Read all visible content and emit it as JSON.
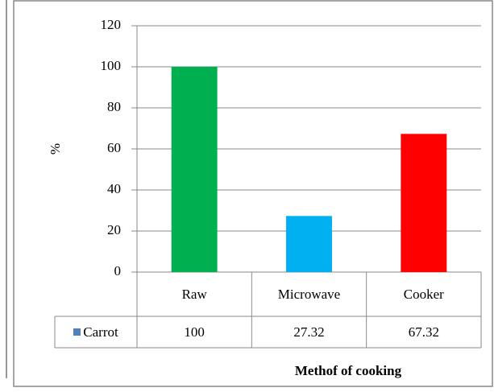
{
  "chart_data": {
    "type": "bar",
    "categories": [
      "Raw",
      "Microwave",
      "Cooker"
    ],
    "series": [
      {
        "name": "Carrot",
        "color": "#4f81bd",
        "bar_colors": [
          "#00b050",
          "#00b0f0",
          "#ff0000"
        ],
        "values": [
          100,
          27.32,
          67.32
        ]
      }
    ],
    "ylim": [
      0,
      120
    ],
    "yticks": [
      0,
      20,
      40,
      60,
      80,
      100,
      120
    ],
    "ylabel": "%",
    "xlabel": "Methof of cooking",
    "grid": true
  }
}
